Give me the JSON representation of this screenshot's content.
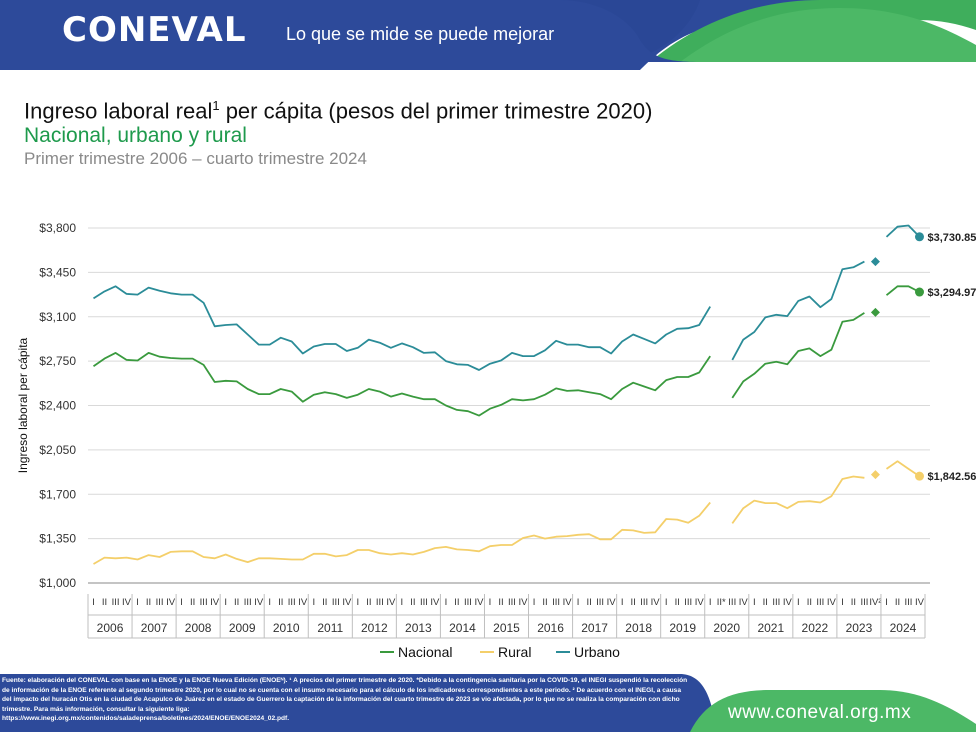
{
  "header": {
    "logo": "CONEVAL",
    "slogan": "Lo que se mide se puede mejorar"
  },
  "title": {
    "main": "Ingreso laboral real",
    "main_sup": "1",
    "main_rest": " per cápita (pesos del primer trimestre 2020)",
    "subtitle": "Nacional, urbano y rural",
    "period": "Primer trimestre 2006 – cuarto trimestre 2024"
  },
  "chart_data": {
    "type": "line",
    "ylabel": "Ingreso laboral per cápita",
    "ylim": [
      1000,
      3800
    ],
    "yticks": [
      1000,
      1350,
      1700,
      2050,
      2400,
      2750,
      3100,
      3450,
      3800
    ],
    "ytick_labels": [
      "$1,000",
      "$1,350",
      "$1,700",
      "$2,050",
      "$2,400",
      "$2,750",
      "$3,100",
      "$3,450",
      "$3,800"
    ],
    "years": [
      "2006",
      "2007",
      "2008",
      "2009",
      "2010",
      "2011",
      "2012",
      "2013",
      "2014",
      "2015",
      "2016",
      "2017",
      "2018",
      "2019",
      "2020",
      "2021",
      "2022",
      "2023",
      "2024"
    ],
    "quarter_labels": [
      "I",
      "II",
      "III",
      "IV"
    ],
    "quarter_labels_2020": [
      "I",
      "II*",
      "III",
      "IV"
    ],
    "quarter_labels_2023": [
      "I",
      "II",
      "III",
      "IV²"
    ],
    "grid": true,
    "legend_position": "bottom",
    "colors": {
      "Nacional": "#3a9a3e",
      "Rural": "#f4cf6a",
      "Urbano": "#2b8c98"
    },
    "series": [
      {
        "name": "Nacional",
        "values": [
          2710,
          2770,
          2815,
          2760,
          2755,
          2815,
          2785,
          2775,
          2770,
          2770,
          2720,
          2585,
          2595,
          2590,
          2530,
          2490,
          2490,
          2530,
          2510,
          2430,
          2485,
          2505,
          2490,
          2460,
          2485,
          2530,
          2510,
          2470,
          2495,
          2470,
          2450,
          2450,
          2400,
          2365,
          2355,
          2320,
          2375,
          2405,
          2450,
          2440,
          2450,
          2485,
          2535,
          2515,
          2520,
          2505,
          2490,
          2450,
          2530,
          2580,
          2550,
          2520,
          2600,
          2625,
          2625,
          2660,
          2790,
          null,
          2460,
          2590,
          2650,
          2730,
          2745,
          2725,
          2830,
          2850,
          2790,
          2840,
          3060,
          3075,
          3130,
          null,
          3270,
          3340,
          3340,
          3295
        ],
        "markers": [
          {
            "index": 71,
            "value": 3135,
            "shape": "diamond"
          },
          {
            "index": 75,
            "value": 3294.97,
            "shape": "circle",
            "label": "$3,294.97"
          }
        ]
      },
      {
        "name": "Rural",
        "values": [
          1150,
          1200,
          1195,
          1200,
          1185,
          1220,
          1205,
          1245,
          1250,
          1250,
          1205,
          1195,
          1225,
          1190,
          1165,
          1195,
          1195,
          1190,
          1185,
          1185,
          1230,
          1230,
          1210,
          1220,
          1260,
          1260,
          1235,
          1225,
          1235,
          1225,
          1245,
          1275,
          1285,
          1265,
          1260,
          1250,
          1290,
          1300,
          1300,
          1355,
          1375,
          1350,
          1365,
          1370,
          1380,
          1385,
          1345,
          1345,
          1420,
          1415,
          1395,
          1400,
          1505,
          1500,
          1475,
          1530,
          1635,
          null,
          1470,
          1590,
          1650,
          1630,
          1630,
          1590,
          1640,
          1645,
          1635,
          1685,
          1820,
          1840,
          1830,
          null,
          1900,
          1960,
          1900,
          1842.56
        ],
        "markers": [
          {
            "index": 71,
            "value": 1855,
            "shape": "diamond"
          },
          {
            "index": 75,
            "value": 1842.56,
            "shape": "circle",
            "label": "$1,842.56"
          }
        ]
      },
      {
        "name": "Urbano",
        "values": [
          3245,
          3300,
          3340,
          3280,
          3275,
          3330,
          3305,
          3285,
          3275,
          3275,
          3210,
          3025,
          3035,
          3040,
          2960,
          2880,
          2880,
          2935,
          2905,
          2810,
          2865,
          2885,
          2885,
          2830,
          2855,
          2920,
          2895,
          2855,
          2890,
          2860,
          2815,
          2820,
          2750,
          2725,
          2720,
          2680,
          2730,
          2755,
          2815,
          2790,
          2790,
          2835,
          2910,
          2880,
          2880,
          2860,
          2860,
          2810,
          2905,
          2960,
          2925,
          2890,
          2960,
          3005,
          3010,
          3035,
          3180,
          null,
          2760,
          2920,
          2980,
          3095,
          3115,
          3105,
          3225,
          3260,
          3175,
          3240,
          3475,
          3490,
          3535,
          null,
          3730,
          3810,
          3820,
          3730.85
        ],
        "markers": [
          {
            "index": 71,
            "value": 3535,
            "shape": "diamond"
          },
          {
            "index": 75,
            "value": 3730.85,
            "shape": "circle",
            "label": "$3,730.85"
          }
        ]
      }
    ]
  },
  "footer": {
    "note": "Fuente: elaboración del CONEVAL con base en la ENOE y la ENOE Nueva Edición (ENOEᴺ). ¹ A precios del primer trimestre de 2020. *Debido a la contingencia sanitaria por la COVID-19, el INEGI suspendió la recolección de información de la ENOE referente al segundo trimestre 2020, por lo cual no se cuenta con el insumo necesario para el cálculo de los indicadores correspondientes a este periodo. ² De acuerdo con el INEGI, a causa del impacto del huracán Otis en la ciudad de Acapulco de Juárez en el estado de Guerrero la captación de la información del cuarto trimestre de 2023 se vio afectada, por lo que no se realiza la comparación con dicho trimestre. Para más información, consultar la siguiente liga:",
    "link": "https://www.inegi.org.mx/contenidos/saladeprensa/boletines/2024/ENOE/ENOE2024_02.pdf.",
    "website": "www.coneval.org.mx"
  }
}
